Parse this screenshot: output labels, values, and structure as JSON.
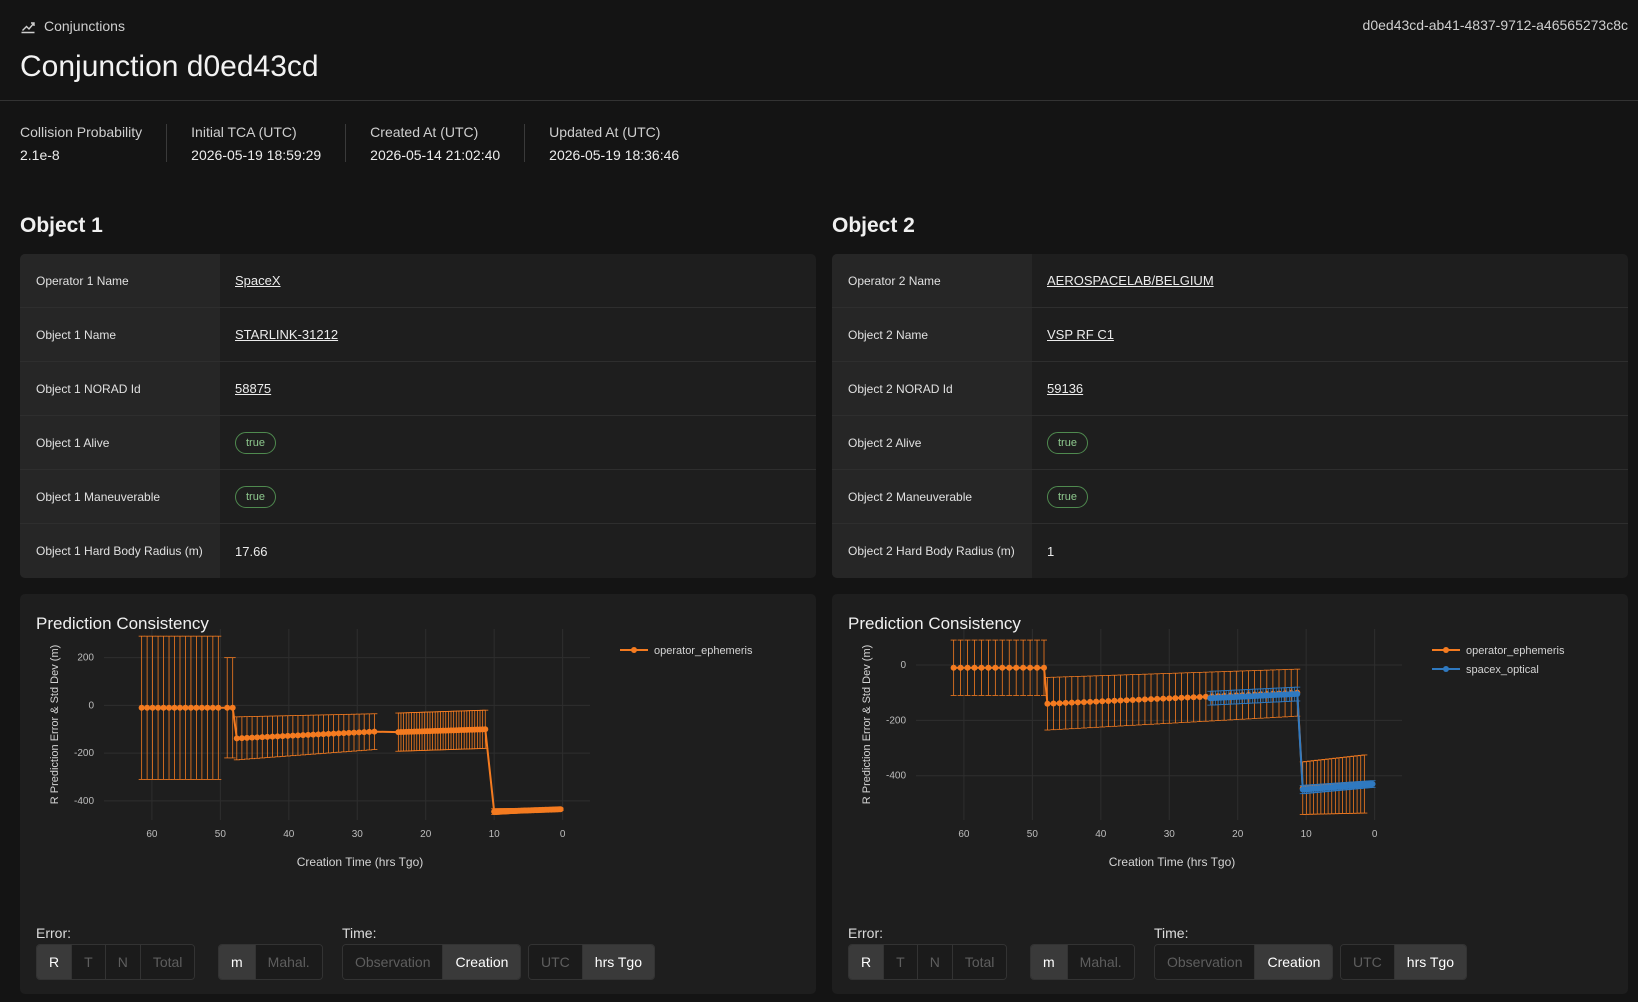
{
  "breadcrumb": {
    "label": "Conjunctions",
    "icon": "chart-line-icon"
  },
  "uuid": "d0ed43cd-ab41-4837-9712-a46565273c8c",
  "title": "Conjunction d0ed43cd",
  "stats": [
    {
      "label": "Collision Probability",
      "value": "2.1e-8"
    },
    {
      "label": "Initial TCA (UTC)",
      "value": "2026-05-19 18:59:29"
    },
    {
      "label": "Created At (UTC)",
      "value": "2026-05-14 21:02:40"
    },
    {
      "label": "Updated At (UTC)",
      "value": "2026-05-19 18:36:46"
    }
  ],
  "objects": [
    {
      "heading": "Object 1",
      "rows": [
        {
          "key": "Operator 1 Name",
          "value": "SpaceX",
          "kind": "link"
        },
        {
          "key": "Object 1 Name",
          "value": "STARLINK-31212",
          "kind": "link"
        },
        {
          "key": "Object 1 NORAD Id",
          "value": "58875",
          "kind": "link"
        },
        {
          "key": "Object 1 Alive",
          "value": "true",
          "kind": "pill"
        },
        {
          "key": "Object 1 Maneuverable",
          "value": "true",
          "kind": "pill"
        },
        {
          "key": "Object 1 Hard Body Radius (m)",
          "value": "17.66",
          "kind": "text"
        }
      ]
    },
    {
      "heading": "Object 2",
      "rows": [
        {
          "key": "Operator 2 Name",
          "value": "AEROSPACELAB/BELGIUM",
          "kind": "link"
        },
        {
          "key": "Object 2 Name",
          "value": "VSP RF C1",
          "kind": "link"
        },
        {
          "key": "Object 2 NORAD Id",
          "value": "59136",
          "kind": "link"
        },
        {
          "key": "Object 2 Alive",
          "value": "true",
          "kind": "pill"
        },
        {
          "key": "Object 2 Maneuverable",
          "value": "true",
          "kind": "pill"
        },
        {
          "key": "Object 2 Hard Body Radius (m)",
          "value": "1",
          "kind": "text"
        }
      ]
    }
  ],
  "panels": [
    {
      "heading": "Prediction Consistency",
      "controls": {
        "error_label": "Error:",
        "time_label": "Time:",
        "error_axes": [
          "R",
          "T",
          "N",
          "Total"
        ],
        "error_axes_selected": "R",
        "units": [
          "m",
          "Mahal."
        ],
        "units_selected": "m",
        "time_modes": [
          "Observation",
          "Creation"
        ],
        "time_modes_selected": "Creation",
        "time_units": [
          "UTC",
          "hrs Tgo"
        ],
        "time_units_selected": "hrs Tgo"
      }
    },
    {
      "heading": "Prediction Consistency",
      "controls": {
        "error_label": "Error:",
        "time_label": "Time:",
        "error_axes": [
          "R",
          "T",
          "N",
          "Total"
        ],
        "error_axes_selected": "R",
        "units": [
          "m",
          "Mahal."
        ],
        "units_selected": "m",
        "time_modes": [
          "Observation",
          "Creation"
        ],
        "time_modes_selected": "Creation",
        "time_units": [
          "UTC",
          "hrs Tgo"
        ],
        "time_units_selected": "hrs Tgo"
      }
    }
  ],
  "colors": {
    "orange": "#f47b20",
    "blue": "#2f79c0",
    "pill_green": "#8ec98e"
  },
  "chart_data": [
    {
      "type": "scatter",
      "xlabel": "Creation Time (hrs Tgo)",
      "ylabel": "R Prediction Error & Std Dev (m)",
      "xlim": [
        67,
        -4
      ],
      "ylim": [
        -480,
        320
      ],
      "xticks": [
        60,
        50,
        40,
        30,
        20,
        10,
        0
      ],
      "yticks": [
        200,
        0,
        -200,
        -400
      ],
      "grid": true,
      "legend_position": "top-right",
      "series": [
        {
          "name": "operator_ephemeris",
          "color": "#f47b20",
          "segments": [
            {
              "x_start": 61.5,
              "x_end": 50.3,
              "n": 15,
              "y_start": -10,
              "y_end": -10,
              "std_start": 300,
              "std_end": 300
            },
            {
              "x_start": 49,
              "x_end": 48.2,
              "n": 2,
              "y_start": -10,
              "y_end": -10,
              "std_start": 210,
              "std_end": 210
            },
            {
              "x_start": 47.6,
              "x_end": 27.5,
              "n": 28,
              "y_start": -138,
              "y_end": -110,
              "std_start": 90,
              "std_end": 75
            },
            {
              "x_start": 24,
              "x_end": 11.3,
              "n": 34,
              "y_start": -112,
              "y_end": -100,
              "std_start": 80,
              "std_end": 80
            },
            {
              "x_start": 10,
              "x_end": 0.3,
              "n": 45,
              "y_start": -445,
              "y_end": -435,
              "std_start": 12,
              "std_end": 5
            }
          ]
        }
      ]
    },
    {
      "type": "scatter",
      "xlabel": "Creation Time (hrs Tgo)",
      "ylabel": "R Prediction Error & Std Dev (m)",
      "xlim": [
        67,
        -4
      ],
      "ylim": [
        -560,
        130
      ],
      "xticks": [
        60,
        50,
        40,
        30,
        20,
        10,
        0
      ],
      "yticks": [
        0,
        -200,
        -400
      ],
      "grid": true,
      "legend_position": "top-right",
      "series": [
        {
          "name": "operator_ephemeris",
          "color": "#f47b20",
          "segments": [
            {
              "x_start": 61.5,
              "x_end": 48.3,
              "n": 14,
              "y_start": -10,
              "y_end": -10,
              "std_start": 100,
              "std_end": 100
            },
            {
              "x_start": 47.8,
              "x_end": 11.3,
              "n": 42,
              "y_start": -140,
              "y_end": -100,
              "std_start": 95,
              "std_end": 85
            },
            {
              "x_start": 10.5,
              "x_end": 1.5,
              "n": 18,
              "y_start": -445,
              "y_end": -430,
              "std_start": 95,
              "std_end": 105
            }
          ]
        },
        {
          "name": "spacex_optical",
          "color": "#2f79c0",
          "segments": [
            {
              "x_start": 24,
              "x_end": 11.3,
              "n": 34,
              "y_start": -120,
              "y_end": -105,
              "std_start": 25,
              "std_end": 25
            },
            {
              "x_start": 10.5,
              "x_end": 0.3,
              "n": 40,
              "y_start": -450,
              "y_end": -430,
              "std_start": 15,
              "std_end": 12
            }
          ]
        }
      ]
    }
  ]
}
